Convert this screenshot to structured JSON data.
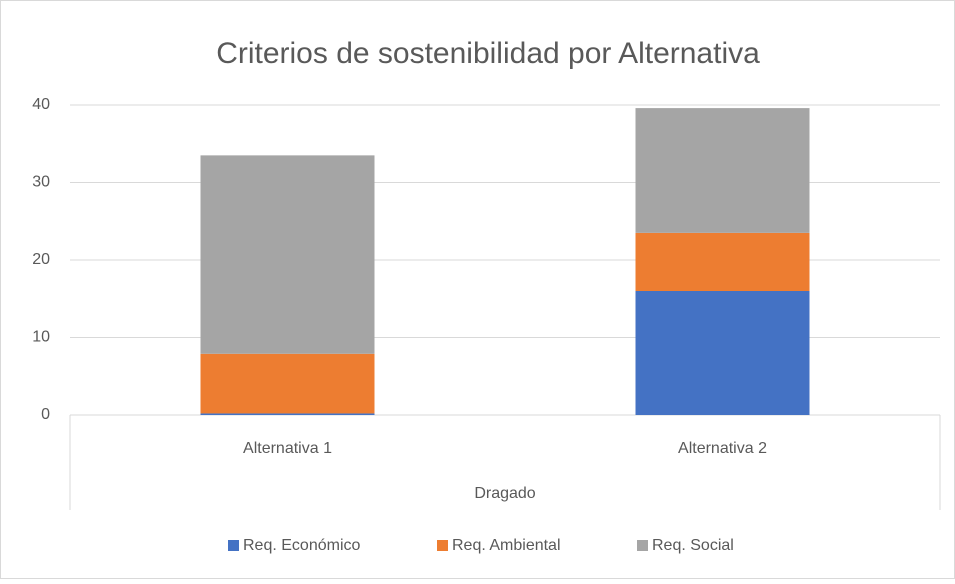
{
  "chart_data": {
    "type": "stacked_bar",
    "title": "Criterios de sostenibilidad por Alternativa",
    "categories": [
      "Alternativa 1",
      "Alternativa 2"
    ],
    "group_label": "Dragado",
    "series": [
      {
        "name": "Req. Económico",
        "color": "#4472c4",
        "values": [
          0.2,
          16
        ]
      },
      {
        "name": "Req. Ambiental",
        "color": "#ed7d31",
        "values": [
          7.7,
          7.5
        ]
      },
      {
        "name": "Req. Social",
        "color": "#a5a5a5",
        "values": [
          25.6,
          16.1
        ]
      }
    ],
    "ylim": [
      0,
      40
    ],
    "yticks": [
      0,
      10,
      20,
      30,
      40
    ],
    "grid": true,
    "legend": "bottom"
  }
}
